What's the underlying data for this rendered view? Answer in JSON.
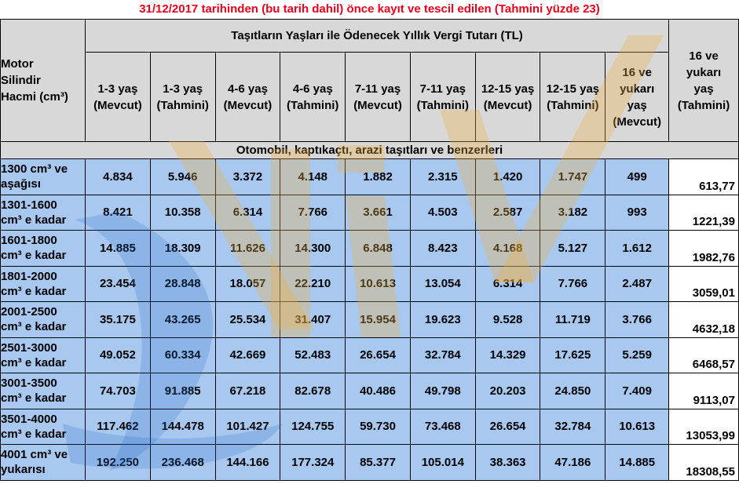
{
  "title": "31/12/2017 tarihinden (bu tarih dahil) önce kayıt ve tescil edilen (Tahmini yüzde 23)",
  "corner_header": [
    "Motor",
    "Silindir",
    "Hacmi (cm³)"
  ],
  "group_header": "Taşıtların Yaşları ile Ödenecek Yıllık Vergi Tutarı (TL)",
  "columns": [
    [
      "1-3 yaş",
      "(Mevcut)"
    ],
    [
      "1-3 yaş",
      "(Tahmini)"
    ],
    [
      "4-6 yaş",
      "(Mevcut)"
    ],
    [
      "4-6 yaş",
      "(Tahmini)"
    ],
    [
      "7-11 yaş",
      "(Mevcut)"
    ],
    [
      "7-11 yaş",
      "(Tahmini)"
    ],
    [
      "12-15 yaş",
      "(Mevcut)"
    ],
    [
      "12-15 yaş",
      "(Tahmini)"
    ],
    [
      "16 ve",
      "yukarı",
      "yaş",
      "(Mevcut)"
    ],
    [
      "16 ve",
      "yukarı",
      "yaş",
      "(Tahmini)"
    ]
  ],
  "section_label": "Otomobil, kaptıkaçtı, arazi taşıtları ve benzerleri",
  "rows": [
    {
      "label": [
        "1300 cm³ ve",
        "aşağısı"
      ],
      "values": [
        "4.834",
        "5.946",
        "3.372",
        "4.148",
        "1.882",
        "2.315",
        "1.420",
        "1.747",
        "499",
        "613,77"
      ]
    },
    {
      "label": [
        "1301-1600",
        "cm³ e kadar"
      ],
      "values": [
        "8.421",
        "10.358",
        "6.314",
        "7.766",
        "3.661",
        "4.503",
        "2.587",
        "3.182",
        "993",
        "1221,39"
      ]
    },
    {
      "label": [
        "1601-1800",
        "cm³ e kadar"
      ],
      "values": [
        "14.885",
        "18.309",
        "11.626",
        "14.300",
        "6.848",
        "8.423",
        "4.168",
        "5.127",
        "1.612",
        "1982,76"
      ]
    },
    {
      "label": [
        "1801-2000",
        "cm³ e kadar"
      ],
      "values": [
        "23.454",
        "28.848",
        "18.057",
        "22.210",
        "10.613",
        "13.054",
        "6.314",
        "7.766",
        "2.487",
        "3059,01"
      ]
    },
    {
      "label": [
        "2001-2500",
        "cm³ e kadar"
      ],
      "values": [
        "35.175",
        "43.265",
        "25.534",
        "31.407",
        "15.954",
        "19.623",
        "9.528",
        "11.719",
        "3.766",
        "4632,18"
      ]
    },
    {
      "label": [
        "2501-3000",
        "cm³ e kadar"
      ],
      "values": [
        "49.052",
        "60.334",
        "42.669",
        "52.483",
        "26.654",
        "32.784",
        "14.329",
        "17.625",
        "5.259",
        "6468,57"
      ]
    },
    {
      "label": [
        "3001-3500",
        "cm³ e kadar"
      ],
      "values": [
        "74.703",
        "91.885",
        "67.218",
        "82.678",
        "40.486",
        "49.798",
        "20.203",
        "24.850",
        "7.409",
        "9113,07"
      ]
    },
    {
      "label": [
        "3501-4000",
        "cm³ e kadar"
      ],
      "values": [
        "117.462",
        "144.478",
        "101.427",
        "124.755",
        "59.730",
        "73.468",
        "26.654",
        "32.784",
        "10.613",
        "13053,99"
      ]
    },
    {
      "label": [
        "4001 cm³ ve",
        "yukarısı"
      ],
      "values": [
        "192.250",
        "236.468",
        "144.166",
        "177.324",
        "85.377",
        "105.014",
        "38.363",
        "47.186",
        "14.885",
        "18308,55"
      ]
    }
  ],
  "colors": {
    "title": "#e8001c",
    "header_bg": "#d8d8d8",
    "cell_bg": "#a8c8f0",
    "watermark_orange": "#f0b040",
    "watermark_blue": "#2a6ec8"
  },
  "watermark_icon": "ntv-logo-watermark"
}
